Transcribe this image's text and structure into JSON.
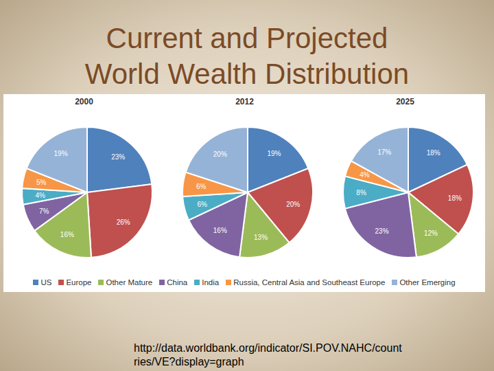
{
  "title": "Current and Projected World Wealth Distribution",
  "title_lines": [
    "Current and Projected",
    "World Wealth Distribution"
  ],
  "source_lines": [
    "http://data.worldbank.org/indicator/SI.POV.NAHC/count",
    "ries/VE?display=graph"
  ],
  "legend": "bottom",
  "chart_data": [
    {
      "type": "pie",
      "title": "2000",
      "categories": [
        "US",
        "Europe",
        "Other Mature",
        "China",
        "India",
        "Russia, Central Asia and Southeast Europe",
        "Other Emerging"
      ],
      "values": [
        23,
        26,
        16,
        7,
        4,
        5,
        19
      ],
      "value_labels": [
        "23%",
        "26%",
        "16%",
        "7%",
        "4%",
        "5%",
        "19%"
      ],
      "colors": [
        "#4f81bd",
        "#c0504d",
        "#9bbb59",
        "#8064a2",
        "#4bacc6",
        "#f79646",
        "#95b3d7"
      ],
      "data_labels": true
    },
    {
      "type": "pie",
      "title": "2012",
      "categories": [
        "US",
        "Europe",
        "Other Mature",
        "China",
        "India",
        "Russia, Central Asia and Southeast Europe",
        "Other Emerging"
      ],
      "values": [
        19,
        20,
        13,
        16,
        6,
        6,
        20
      ],
      "value_labels": [
        "19%",
        "20%",
        "13%",
        "16%",
        "6%",
        "6%",
        "20%"
      ],
      "colors": [
        "#4f81bd",
        "#c0504d",
        "#9bbb59",
        "#8064a2",
        "#4bacc6",
        "#f79646",
        "#95b3d7"
      ],
      "data_labels": true
    },
    {
      "type": "pie",
      "title": "2025",
      "categories": [
        "US",
        "Europe",
        "Other Mature",
        "China",
        "India",
        "Russia, Central Asia and Southeast Europe",
        "Other Emerging"
      ],
      "values": [
        18,
        18,
        12,
        23,
        8,
        4,
        17
      ],
      "value_labels": [
        "18%",
        "18%",
        "12%",
        "23%",
        "8%",
        "4%",
        "17%"
      ],
      "colors": [
        "#4f81bd",
        "#c0504d",
        "#9bbb59",
        "#8064a2",
        "#4bacc6",
        "#f79646",
        "#95b3d7"
      ],
      "data_labels": true
    }
  ]
}
